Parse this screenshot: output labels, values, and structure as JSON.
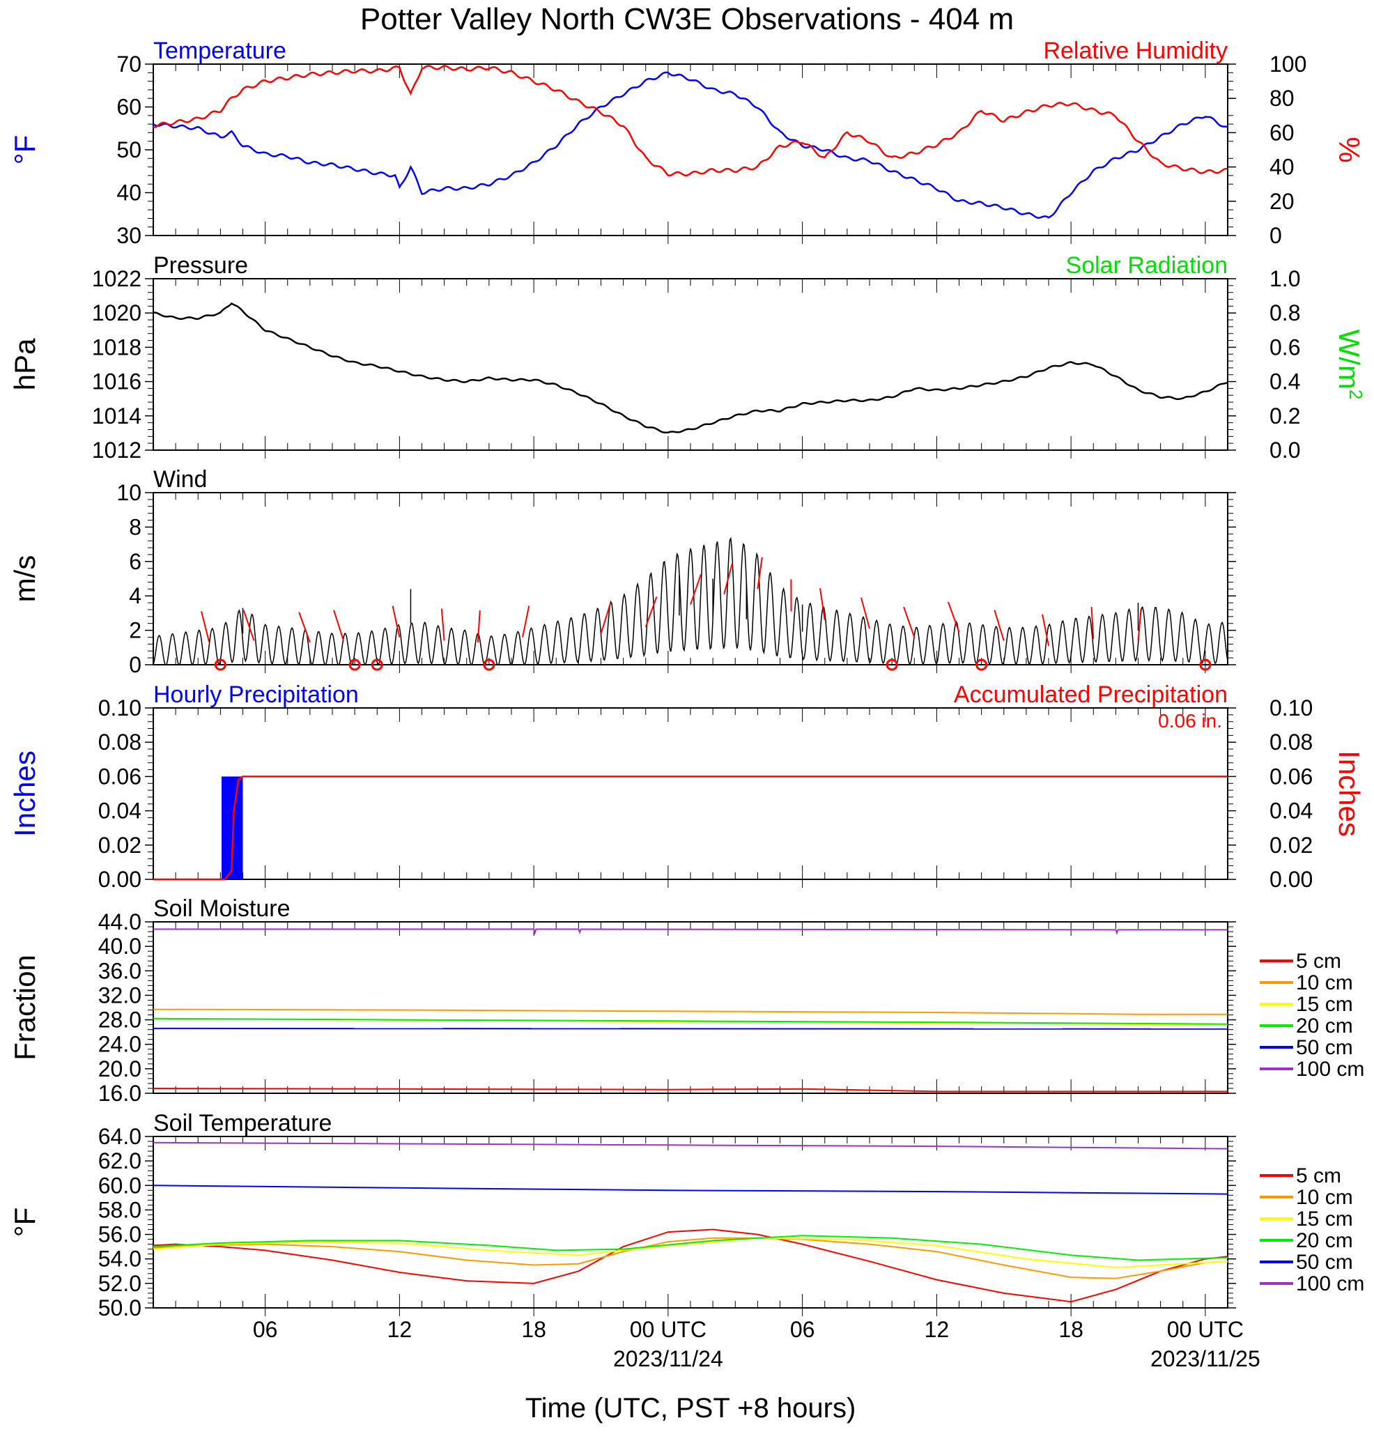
{
  "title": "Potter Valley North CW3E Observations - 404 m",
  "x_axis": {
    "label": "Time (UTC, PST +8 hours)",
    "tick_labels": [
      "06",
      "12",
      "18",
      "00 UTC",
      "06",
      "12",
      "18",
      "00 UTC"
    ],
    "tick_hours": [
      6,
      12,
      18,
      24,
      30,
      36,
      42,
      48
    ],
    "date_labels": [
      {
        "hour": 24,
        "text": "2023/11/24"
      },
      {
        "hour": 48,
        "text": "2023/11/25"
      }
    ],
    "range_hours": [
      1,
      49
    ]
  },
  "colors": {
    "temperature": "#0000ff",
    "humidity": "#ff0000",
    "pressure": "#000000",
    "solar": "#00dd00",
    "wind": "#000000",
    "barb": "#ff0000",
    "hourly_precip": "#0000ff",
    "accum_precip": "#ff0000",
    "depth_5": "#ff0000",
    "depth_10": "#ff9900",
    "depth_15": "#ffff00",
    "depth_20": "#00ee00",
    "depth_50": "#0000ff",
    "depth_100": "#9933cc"
  },
  "chart_data": [
    {
      "type": "line",
      "panel": "temp_rh",
      "left_title": "Temperature",
      "right_title": "Relative Humidity",
      "left_unit": "°F",
      "right_unit": "%",
      "left_ylim": [
        30,
        70
      ],
      "right_ylim": [
        0,
        100
      ],
      "left_ticks": [
        "30",
        "40",
        "50",
        "60",
        "70"
      ],
      "right_ticks": [
        "0",
        "20",
        "40",
        "60",
        "80",
        "100"
      ],
      "series": [
        {
          "key": "temperature",
          "axis": "left",
          "x": [
            1,
            2,
            3,
            4,
            4.5,
            5,
            6,
            7,
            8,
            9,
            10,
            11,
            11.8,
            12,
            12.5,
            13,
            14,
            15,
            16,
            17,
            18,
            19,
            20,
            21,
            22,
            23,
            24,
            25,
            26,
            27,
            28,
            29,
            30,
            31,
            32,
            33,
            34,
            35,
            36,
            37,
            38,
            39,
            40,
            41,
            42,
            43,
            44,
            45,
            46,
            47,
            48,
            49
          ],
          "y": [
            56,
            55.5,
            55,
            53,
            54,
            51,
            49,
            48.5,
            47,
            46.5,
            45.5,
            44.5,
            44,
            41,
            46,
            40,
            41,
            41,
            42,
            44,
            47,
            51,
            56,
            60,
            63,
            66,
            68,
            66.5,
            64,
            63,
            60,
            54,
            51,
            50,
            48,
            47.5,
            45,
            43,
            41,
            38,
            37.5,
            36.5,
            35,
            34,
            40,
            45,
            48,
            50,
            53,
            56,
            58,
            55
          ]
        },
        {
          "key": "humidity",
          "axis": "right",
          "x": [
            1,
            2,
            3,
            4,
            4.5,
            5,
            6,
            7,
            8,
            9,
            10,
            11,
            12,
            12.5,
            13,
            14,
            15,
            16,
            17,
            18,
            19,
            20,
            21,
            22,
            23,
            24,
            25,
            26,
            27,
            28,
            29,
            30,
            31,
            32,
            33,
            34,
            35,
            36,
            37,
            38,
            39,
            40,
            41,
            42,
            43,
            44,
            45,
            46,
            47,
            48,
            49
          ],
          "y": [
            64,
            66,
            68,
            73,
            80,
            85,
            90,
            92,
            94,
            95,
            96,
            96,
            98,
            82,
            98,
            98,
            97,
            98,
            95,
            90,
            85,
            78,
            72,
            64,
            45,
            36,
            36,
            38,
            38,
            40,
            52,
            55,
            45,
            60,
            55,
            45,
            48,
            53,
            60,
            73,
            67,
            72,
            76,
            77,
            73,
            70,
            55,
            42,
            39,
            37,
            38
          ]
        }
      ]
    },
    {
      "type": "line",
      "panel": "pressure",
      "left_title": "Pressure",
      "right_title": "Solar Radiation",
      "left_unit": "hPa",
      "right_unit": "W/m",
      "right_unit_sup": "2",
      "left_ylim": [
        1012,
        1022
      ],
      "right_ylim": [
        0,
        1
      ],
      "left_ticks": [
        "1012",
        "1014",
        "1016",
        "1018",
        "1020",
        "1022"
      ],
      "right_ticks": [
        "0.0",
        "0.2",
        "0.4",
        "0.6",
        "0.8",
        "1.0"
      ],
      "series": [
        {
          "key": "pressure",
          "axis": "left",
          "x": [
            1,
            2,
            3,
            4,
            4.5,
            5,
            6,
            7,
            8,
            9,
            10,
            11,
            12,
            13,
            14,
            15,
            16,
            17,
            18,
            19,
            20,
            21,
            22,
            23,
            24,
            25,
            26,
            27,
            28,
            29,
            30,
            31,
            32,
            33,
            34,
            35,
            36,
            37,
            38,
            39,
            40,
            41,
            42,
            43,
            44,
            45,
            46,
            47,
            48,
            49
          ],
          "y": [
            1020,
            1019.7,
            1019.7,
            1020,
            1020.6,
            1020.1,
            1019,
            1018.5,
            1018,
            1017.5,
            1017.1,
            1016.9,
            1016.6,
            1016.3,
            1016.1,
            1016,
            1016.2,
            1016.1,
            1016.1,
            1015.8,
            1015.3,
            1014.7,
            1014,
            1013.4,
            1013,
            1013.2,
            1013.6,
            1014,
            1014.3,
            1014.3,
            1014.7,
            1014.8,
            1014.9,
            1014.9,
            1015.1,
            1015.6,
            1015.5,
            1015.6,
            1015.8,
            1016,
            1016.3,
            1016.8,
            1017.1,
            1017,
            1016.3,
            1015.5,
            1015.1,
            1015,
            1015.4,
            1016
          ]
        }
      ]
    },
    {
      "type": "line",
      "panel": "wind",
      "left_title": "Wind",
      "left_unit": "m/s",
      "left_ylim": [
        0,
        10
      ],
      "left_ticks": [
        "0",
        "2",
        "4",
        "6",
        "8",
        "10"
      ],
      "series": [
        {
          "key": "wind",
          "axis": "left",
          "x": [
            1,
            2,
            3,
            4,
            5,
            6,
            7,
            8,
            9,
            10,
            11,
            12,
            13,
            14,
            15,
            16,
            17,
            18,
            19,
            20,
            21,
            22,
            23,
            24,
            25,
            26,
            27,
            28,
            29,
            30,
            31,
            32,
            33,
            34,
            35,
            36,
            37,
            38,
            39,
            40,
            41,
            42,
            43,
            44,
            45,
            46,
            47,
            48,
            49
          ],
          "y": [
            0.8,
            0.9,
            1.0,
            1.1,
            1.8,
            1.2,
            1.1,
            1.0,
            0.9,
            0.9,
            1.0,
            1.2,
            1.3,
            1.1,
            1.0,
            0.8,
            0.9,
            1.1,
            1.3,
            1.5,
            1.8,
            2.2,
            2.8,
            3.5,
            3.8,
            4.0,
            4.2,
            3.6,
            2.5,
            2.0,
            1.8,
            1.6,
            1.4,
            1.2,
            1.1,
            1.2,
            1.3,
            1.2,
            1.1,
            1.1,
            1.2,
            1.4,
            1.5,
            1.6,
            1.8,
            1.8,
            1.6,
            1.2,
            1.3
          ]
        },
        {
          "key": "wind_max",
          "axis": "left",
          "x": [
            5,
            12.5,
            24.5,
            26,
            27.5,
            30,
            45
          ],
          "y": [
            3.3,
            4.4,
            5.2,
            5.0,
            4.8,
            3.5,
            3.6
          ]
        }
      ],
      "calm_markers_hours": [
        4,
        10,
        11,
        16,
        34,
        38,
        48
      ],
      "barb_hours": [
        3.5,
        5.5,
        8,
        9.5,
        12,
        14,
        15.5,
        17.5,
        21,
        23,
        25,
        26.5,
        28,
        29.5,
        31,
        33,
        35,
        37,
        39,
        41,
        43,
        45
      ],
      "barb_speeds": [
        1.3,
        1.4,
        1.3,
        1.4,
        1.6,
        1.4,
        1.3,
        1.6,
        1.8,
        2.2,
        3.5,
        4.1,
        4.4,
        3.1,
        2.6,
        2.1,
        1.6,
        1.9,
        1.4,
        1.1,
        1.5,
        1.4
      ]
    },
    {
      "type": "bar",
      "panel": "precip",
      "left_title": "Hourly Precipitation",
      "right_title": "Accumulated Precipitation",
      "total_label": "0.06 in.",
      "left_unit": "Inches",
      "right_unit": "Inches",
      "left_ylim": [
        0,
        0.1
      ],
      "right_ylim": [
        0,
        0.1
      ],
      "left_ticks": [
        "0.00",
        "0.02",
        "0.04",
        "0.06",
        "0.08",
        "0.10"
      ],
      "right_ticks": [
        "0.00",
        "0.02",
        "0.04",
        "0.06",
        "0.08",
        "0.10"
      ],
      "hourly_bars": [
        {
          "start": 4.05,
          "end": 5.0,
          "value": 0.06
        }
      ],
      "accumulated": {
        "x": [
          1,
          4.2,
          4.5,
          4.6,
          4.8,
          5.0,
          49
        ],
        "y": [
          0,
          0,
          0.005,
          0.04,
          0.058,
          0.06,
          0.06
        ]
      }
    },
    {
      "type": "line",
      "panel": "soil_moisture",
      "left_title": "Soil Moisture",
      "left_unit": "Fraction",
      "left_ylim": [
        16,
        44
      ],
      "left_ticks": [
        "16.0",
        "20.0",
        "24.0",
        "28.0",
        "32.0",
        "36.0",
        "40.0",
        "44.0"
      ],
      "legend": [
        "5 cm",
        "10 cm",
        "15 cm",
        "20 cm",
        "50 cm",
        "100 cm"
      ],
      "series": [
        {
          "key": "depth_5",
          "x": [
            1,
            12,
            24,
            30,
            36,
            49
          ],
          "y": [
            16.8,
            16.7,
            16.6,
            16.7,
            16.3,
            16.3
          ]
        },
        {
          "key": "depth_10",
          "x": [
            1,
            12,
            24,
            36,
            45,
            49
          ],
          "y": [
            29.7,
            29.6,
            29.4,
            29.2,
            28.9,
            28.9
          ]
        },
        {
          "key": "depth_15",
          "x": [
            1,
            49
          ],
          "y": [
            28.2,
            27.2
          ]
        },
        {
          "key": "depth_20",
          "x": [
            1,
            12,
            24,
            36,
            49
          ],
          "y": [
            28.2,
            28.0,
            27.8,
            27.6,
            27.3
          ]
        },
        {
          "key": "depth_50",
          "x": [
            1,
            49
          ],
          "y": [
            26.6,
            26.5
          ]
        },
        {
          "key": "depth_100",
          "x": [
            1,
            18,
            18.05,
            18.1,
            20,
            20.05,
            20.1,
            44,
            44.05,
            44.1,
            49
          ],
          "y": [
            42.8,
            42.8,
            42.2,
            42.8,
            42.8,
            42.3,
            42.8,
            42.7,
            42.2,
            42.7,
            42.7
          ]
        }
      ]
    },
    {
      "type": "line",
      "panel": "soil_temp",
      "left_title": "Soil Temperature",
      "left_unit": "°F",
      "left_ylim": [
        50,
        64
      ],
      "left_ticks": [
        "50.0",
        "52.0",
        "54.0",
        "56.0",
        "58.0",
        "60.0",
        "62.0",
        "64.0"
      ],
      "legend": [
        "5 cm",
        "10 cm",
        "15 cm",
        "20 cm",
        "50 cm",
        "100 cm"
      ],
      "series": [
        {
          "key": "depth_5",
          "x": [
            1,
            2,
            4,
            6,
            9,
            12,
            15,
            18,
            20,
            22,
            24,
            26,
            28,
            30,
            33,
            36,
            39,
            42,
            44,
            46,
            48,
            49
          ],
          "y": [
            55.1,
            55.2,
            55.0,
            54.7,
            53.9,
            52.9,
            52.2,
            52.0,
            53.0,
            55.0,
            56.2,
            56.4,
            56.0,
            55.2,
            53.8,
            52.3,
            51.2,
            50.5,
            51.5,
            53.0,
            54.0,
            54.2
          ]
        },
        {
          "key": "depth_10",
          "x": [
            1,
            3,
            6,
            9,
            12,
            15,
            18,
            20,
            22,
            24,
            26,
            28,
            30,
            33,
            36,
            39,
            42,
            44,
            46,
            48,
            49
          ],
          "y": [
            54.9,
            55.1,
            55.2,
            55.0,
            54.6,
            53.9,
            53.5,
            53.6,
            54.6,
            55.4,
            55.7,
            55.7,
            55.6,
            55.2,
            54.6,
            53.5,
            52.5,
            52.4,
            53.0,
            53.7,
            53.8
          ]
        },
        {
          "key": "depth_15",
          "x": [
            1,
            4,
            8,
            12,
            16,
            20,
            24,
            28,
            32,
            36,
            40,
            44,
            49
          ],
          "y": [
            54.8,
            55.2,
            55.4,
            55.3,
            54.7,
            54.3,
            55.1,
            55.7,
            55.6,
            55.1,
            54.0,
            53.3,
            53.8
          ]
        },
        {
          "key": "depth_20",
          "x": [
            1,
            4,
            8,
            12,
            16,
            19,
            22,
            26,
            30,
            34,
            38,
            42,
            45,
            49
          ],
          "y": [
            55.0,
            55.3,
            55.5,
            55.5,
            55.1,
            54.7,
            54.8,
            55.5,
            55.9,
            55.7,
            55.2,
            54.3,
            53.9,
            54.1
          ]
        },
        {
          "key": "depth_50",
          "x": [
            1,
            12,
            24,
            36,
            49
          ],
          "y": [
            60.0,
            59.8,
            59.6,
            59.5,
            59.3
          ]
        },
        {
          "key": "depth_100",
          "x": [
            1,
            12,
            24,
            36,
            49
          ],
          "y": [
            63.5,
            63.4,
            63.3,
            63.2,
            63.0
          ]
        }
      ]
    }
  ]
}
